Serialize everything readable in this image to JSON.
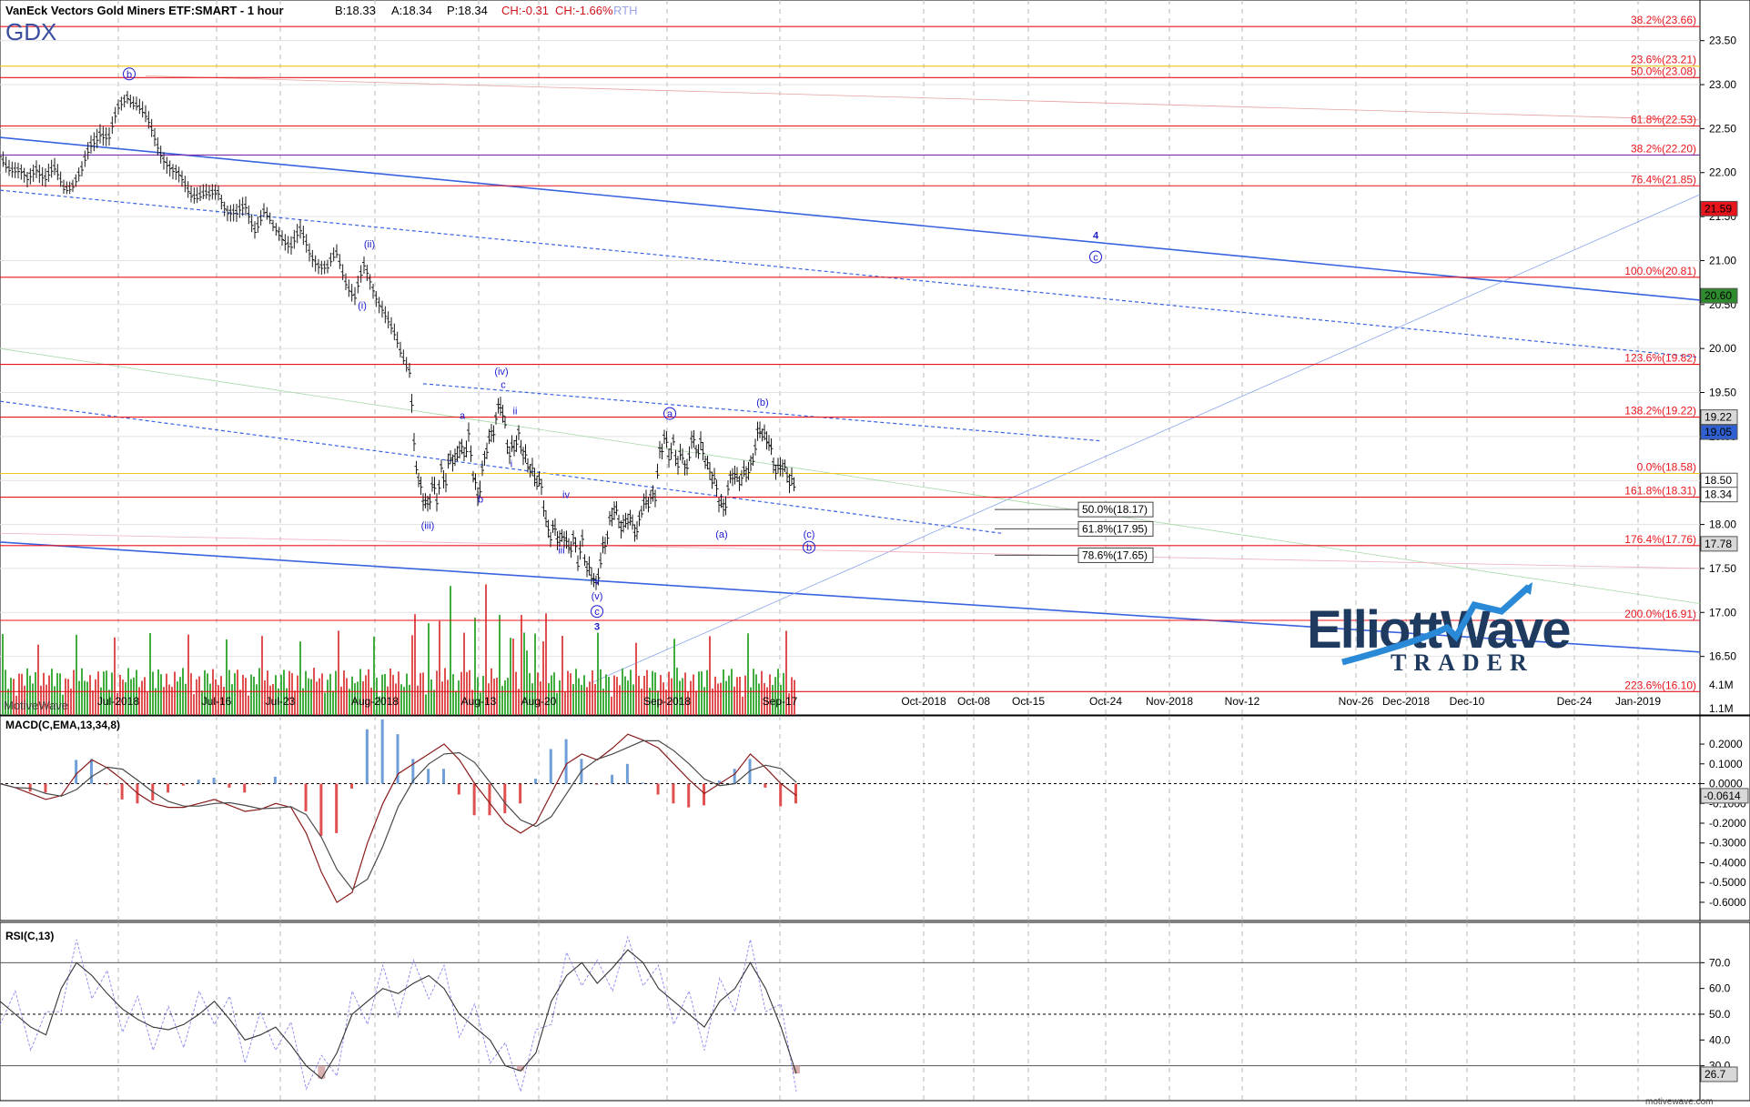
{
  "header": {
    "symbol_title": "VanEck Vectors Gold Miners ETF:SMART - 1 hour",
    "bid": "B:18.33",
    "ask": "A:18.34",
    "price": "P:18.34",
    "change": "CH:-0.31",
    "change_pct": "CH:-1.66%",
    "session": "RTH",
    "ticker": "GDX"
  },
  "watermark": "MotiveWave",
  "footer_site": "motivewave.com",
  "logo": {
    "line1": "ElliottWave",
    "line2": "TRADER"
  },
  "colors": {
    "bar": "#1a1a1a",
    "fib": "#e8141c",
    "fib_label": "#e8141c",
    "wave": "#1a1ad0",
    "channel": "#3a63e0",
    "vol_up": "#3fae3f",
    "vol_down": "#e05050",
    "macd_fast": "#8a1c1c",
    "macd_slow": "#4a4a4a",
    "hist_up": "#6f9fd8",
    "hist_down": "#e05050",
    "rsi_line": "#333333",
    "rsi_band": "#8888ee",
    "price_badge_red": "#e8141c",
    "price_badge_green": "#2e8b2e",
    "price_badge_blue": "#2f5fd0",
    "logo_blue": "#2a8ad8"
  },
  "chart_data": [
    {
      "type": "candlestick",
      "title": "VanEck Vectors Gold Miners ETF:SMART - 1 hour",
      "ylim": [
        16.0,
        23.9
      ],
      "x_tick_labels": [
        "Jul-2018",
        "Jul-16",
        "Jul-23",
        "Aug-2018",
        "Aug-13",
        "Aug-20",
        "Sep-2018",
        "Sep-17",
        "Oct-2018",
        "Oct-08",
        "Oct-15",
        "Oct-24",
        "Nov-2018",
        "Nov-12",
        "Nov-26",
        "Dec-2018",
        "Dec-10",
        "Dec-24",
        "Jan-2019"
      ],
      "y_tick_labels": [
        "23.50",
        "23.00",
        "22.50",
        "22.00",
        "21.50",
        "21.00",
        "20.50",
        "20.00",
        "19.50",
        "19.00",
        "18.50",
        "18.00",
        "17.50",
        "17.00",
        "16.50"
      ],
      "y_ticks": [
        23.5,
        23.0,
        22.5,
        22.0,
        21.5,
        21.0,
        20.5,
        20.0,
        19.5,
        19.0,
        18.5,
        18.0,
        17.5,
        17.0,
        16.5
      ],
      "price_path": [
        [
          0,
          22.2
        ],
        [
          10,
          22.1
        ],
        [
          20,
          22.0
        ],
        [
          30,
          21.9
        ],
        [
          40,
          22.1
        ],
        [
          50,
          21.95
        ],
        [
          60,
          22.0
        ],
        [
          70,
          21.85
        ],
        [
          80,
          21.9
        ],
        [
          90,
          22.0
        ],
        [
          100,
          22.3
        ],
        [
          110,
          22.5
        ],
        [
          120,
          22.4
        ],
        [
          130,
          22.7
        ],
        [
          140,
          22.9
        ],
        [
          150,
          22.8
        ],
        [
          160,
          22.6
        ],
        [
          170,
          22.4
        ],
        [
          180,
          22.2
        ],
        [
          190,
          22.0
        ],
        [
          200,
          21.9
        ],
        [
          210,
          21.8
        ],
        [
          220,
          21.75
        ],
        [
          230,
          21.7
        ],
        [
          240,
          21.8
        ],
        [
          250,
          21.6
        ],
        [
          260,
          21.5
        ],
        [
          270,
          21.6
        ],
        [
          280,
          21.4
        ],
        [
          290,
          21.55
        ],
        [
          300,
          21.35
        ],
        [
          310,
          21.3
        ],
        [
          320,
          21.2
        ],
        [
          330,
          21.3
        ],
        [
          340,
          21.1
        ],
        [
          350,
          21.0
        ],
        [
          360,
          20.9
        ],
        [
          370,
          21.05
        ],
        [
          380,
          20.8
        ],
        [
          390,
          20.6
        ],
        [
          400,
          20.9
        ],
        [
          410,
          20.7
        ],
        [
          420,
          20.5
        ],
        [
          430,
          20.2
        ],
        [
          440,
          19.95
        ],
        [
          450,
          19.8
        ],
        [
          455,
          18.9
        ],
        [
          460,
          18.5
        ],
        [
          465,
          18.3
        ],
        [
          470,
          18.2
        ],
        [
          475,
          18.45
        ],
        [
          480,
          18.3
        ],
        [
          485,
          18.6
        ],
        [
          490,
          18.5
        ],
        [
          495,
          18.8
        ],
        [
          500,
          18.7
        ],
        [
          505,
          18.9
        ],
        [
          510,
          18.8
        ],
        [
          515,
          19.0
        ],
        [
          520,
          18.6
        ],
        [
          525,
          18.3
        ],
        [
          530,
          18.6
        ],
        [
          535,
          18.9
        ],
        [
          540,
          19.0
        ],
        [
          545,
          19.2
        ],
        [
          550,
          19.4
        ],
        [
          555,
          19.1
        ],
        [
          560,
          18.8
        ],
        [
          565,
          18.9
        ],
        [
          570,
          19.0
        ],
        [
          575,
          18.8
        ],
        [
          580,
          18.7
        ],
        [
          585,
          18.6
        ],
        [
          590,
          18.5
        ],
        [
          595,
          18.45
        ],
        [
          600,
          18.0
        ],
        [
          605,
          17.9
        ],
        [
          610,
          17.95
        ],
        [
          615,
          17.8
        ],
        [
          620,
          17.9
        ],
        [
          625,
          17.7
        ],
        [
          630,
          17.85
        ],
        [
          635,
          17.6
        ],
        [
          640,
          17.8
        ],
        [
          645,
          17.5
        ],
        [
          650,
          17.45
        ],
        [
          655,
          17.3
        ],
        [
          660,
          17.6
        ],
        [
          665,
          17.8
        ],
        [
          670,
          18.0
        ],
        [
          675,
          18.2
        ],
        [
          680,
          18.05
        ],
        [
          685,
          17.95
        ],
        [
          690,
          18.1
        ],
        [
          695,
          18.0
        ],
        [
          700,
          17.9
        ],
        [
          705,
          18.2
        ],
        [
          710,
          18.25
        ],
        [
          715,
          18.3
        ],
        [
          720,
          18.35
        ],
        [
          725,
          18.8
        ],
        [
          730,
          19.0
        ],
        [
          735,
          18.8
        ],
        [
          740,
          18.9
        ],
        [
          745,
          18.7
        ],
        [
          750,
          18.8
        ],
        [
          755,
          18.6
        ],
        [
          760,
          19.0
        ],
        [
          765,
          18.85
        ],
        [
          770,
          18.9
        ],
        [
          775,
          18.75
        ],
        [
          780,
          18.6
        ],
        [
          785,
          18.5
        ],
        [
          790,
          18.3
        ],
        [
          795,
          18.15
        ],
        [
          800,
          18.4
        ],
        [
          805,
          18.6
        ],
        [
          810,
          18.5
        ],
        [
          815,
          18.55
        ],
        [
          820,
          18.6
        ],
        [
          825,
          18.65
        ],
        [
          830,
          18.9
        ],
        [
          835,
          19.1
        ],
        [
          840,
          19.0
        ],
        [
          845,
          18.95
        ],
        [
          850,
          18.7
        ],
        [
          855,
          18.6
        ],
        [
          860,
          18.7
        ],
        [
          865,
          18.55
        ],
        [
          870,
          18.5
        ],
        [
          875,
          18.34
        ]
      ],
      "fib_levels": [
        {
          "label": "38.2%(23.66)",
          "value": 23.66,
          "color": "#e8141c"
        },
        {
          "label": "23.6%(23.21)",
          "value": 23.21,
          "color": "#f0c419"
        },
        {
          "label": "50.0%(23.08)",
          "value": 23.08,
          "color": "#e8141c"
        },
        {
          "label": "61.8%(22.53)",
          "value": 22.53,
          "color": "#e8141c"
        },
        {
          "label": "38.2%(22.20)",
          "value": 22.2,
          "color": "#7b2fa8"
        },
        {
          "label": "76.4%(21.85)",
          "value": 21.85,
          "color": "#e8141c"
        },
        {
          "label": "100.0%(20.81)",
          "value": 20.81,
          "color": "#e8141c"
        },
        {
          "label": "123.6%(19.82)",
          "value": 19.82,
          "color": "#e8141c"
        },
        {
          "label": "138.2%(19.22)",
          "value": 19.22,
          "color": "#e8141c"
        },
        {
          "label": "0.0%(18.58)",
          "value": 18.58,
          "color": "#f0c419"
        },
        {
          "label": "161.8%(18.31)",
          "value": 18.31,
          "color": "#e8141c"
        },
        {
          "label": "176.4%(17.76)",
          "value": 17.76,
          "color": "#e8141c"
        },
        {
          "label": "200.0%(16.91)",
          "value": 16.91,
          "color": "#e8141c"
        },
        {
          "label": "223.6%(16.10)",
          "value": 16.1,
          "color": "#e8141c"
        }
      ],
      "target_boxes": [
        {
          "label": "50.0%(18.17)",
          "value": 18.17
        },
        {
          "label": "61.8%(17.95)",
          "value": 17.95
        },
        {
          "label": "78.6%(17.65)",
          "value": 17.65
        }
      ],
      "price_badges": [
        {
          "label": "21.59",
          "value": 21.59,
          "style": "red"
        },
        {
          "label": "20.60",
          "value": 20.6,
          "style": "green"
        },
        {
          "label": "19.22",
          "value": 19.22,
          "style": "gray"
        },
        {
          "label": "19.05",
          "value": 19.05,
          "style": "blue"
        },
        {
          "label": "18.50",
          "value": 18.5,
          "style": "white"
        },
        {
          "label": "18.34",
          "value": 18.34,
          "style": "white"
        },
        {
          "label": "17.78",
          "value": 17.78,
          "style": "gray"
        }
      ],
      "wave_labels": [
        {
          "text": "b",
          "circled": true,
          "x": 142,
          "y": 23.08
        },
        {
          "text": "(ii)",
          "x": 406,
          "y": 21.15
        },
        {
          "text": "(i)",
          "x": 398,
          "y": 20.45
        },
        {
          "text": "(iv)",
          "x": 551,
          "y": 19.7
        },
        {
          "text": "c",
          "x": 553,
          "y": 19.55
        },
        {
          "text": "a",
          "x": 508,
          "y": 19.2
        },
        {
          "text": "ii",
          "x": 566,
          "y": 19.25
        },
        {
          "text": "i",
          "x": 562,
          "y": 18.65
        },
        {
          "text": "b",
          "x": 528,
          "y": 18.25
        },
        {
          "text": "(iii)",
          "x": 470,
          "y": 17.95
        },
        {
          "text": "iv",
          "x": 622,
          "y": 18.3
        },
        {
          "text": "iii",
          "x": 617,
          "y": 17.67
        },
        {
          "text": "v",
          "x": 656,
          "y": 17.32
        },
        {
          "text": "(v)",
          "x": 656,
          "y": 17.15
        },
        {
          "text": "c",
          "circled": true,
          "x": 656,
          "y": 16.97
        },
        {
          "text": "3",
          "bold": true,
          "x": 656,
          "y": 16.8
        },
        {
          "text": "a",
          "circled": true,
          "x": 736,
          "y": 19.22
        },
        {
          "text": "(b)",
          "x": 838,
          "y": 19.35
        },
        {
          "text": "(a)",
          "x": 793,
          "y": 17.85
        },
        {
          "text": "(c)",
          "x": 889,
          "y": 17.85
        },
        {
          "text": "b",
          "circled": true,
          "x": 889,
          "y": 17.7
        },
        {
          "text": "4",
          "bold": true,
          "x": 1204,
          "y": 21.25
        },
        {
          "text": "c",
          "circled": true,
          "x": 1204,
          "y": 21.0
        }
      ]
    },
    {
      "type": "bar",
      "title": "Volume",
      "y_tick_labels": [
        "4.1M",
        "1.1M"
      ]
    },
    {
      "type": "line",
      "title": "MACD(C,EMA,13,34,8)",
      "ylim": [
        -0.66,
        0.26
      ],
      "y_ticks": [
        0.2,
        0.1,
        0.0,
        -0.1,
        -0.2,
        -0.3,
        -0.4,
        -0.5,
        -0.6
      ],
      "y_tick_labels": [
        "0.2000",
        "0.1000",
        "0.0000",
        "-0.1000",
        "-0.2000",
        "-0.3000",
        "-0.4000",
        "-0.5000",
        "-0.6000"
      ],
      "current_badge": "-0.0614",
      "series": [
        {
          "name": "MACD",
          "values": [
            0.0,
            -0.02,
            -0.05,
            -0.08,
            -0.06,
            0.05,
            0.12,
            0.08,
            0.02,
            -0.05,
            -0.1,
            -0.12,
            -0.12,
            -0.1,
            -0.08,
            -0.11,
            -0.14,
            -0.13,
            -0.1,
            -0.12,
            -0.25,
            -0.45,
            -0.6,
            -0.55,
            -0.3,
            -0.1,
            0.05,
            0.1,
            0.15,
            0.2,
            0.12,
            0.0,
            -0.1,
            -0.2,
            -0.25,
            -0.2,
            -0.05,
            0.1,
            0.15,
            0.12,
            0.18,
            0.25,
            0.22,
            0.18,
            0.1,
            0.02,
            -0.05,
            0.0,
            0.05,
            0.15,
            0.08,
            0.0,
            -0.06
          ]
        }
      ]
    },
    {
      "type": "line",
      "title": "RSI(C,13)",
      "ylim": [
        20,
        80
      ],
      "y_ticks": [
        70,
        60,
        50,
        40,
        30
      ],
      "y_tick_labels": [
        "70.0",
        "60.0",
        "50.0",
        "40.0",
        "30.0"
      ],
      "levels": [
        70,
        50,
        30
      ],
      "current_badge": "26.7",
      "series": [
        {
          "name": "RSI",
          "values": [
            55,
            50,
            45,
            42,
            60,
            70,
            65,
            58,
            52,
            48,
            45,
            44,
            46,
            50,
            55,
            48,
            40,
            42,
            45,
            38,
            30,
            25,
            35,
            50,
            55,
            60,
            58,
            62,
            65,
            60,
            50,
            45,
            40,
            30,
            28,
            35,
            55,
            65,
            70,
            62,
            68,
            75,
            70,
            60,
            55,
            50,
            45,
            55,
            60,
            70,
            60,
            45,
            27
          ]
        }
      ]
    }
  ]
}
